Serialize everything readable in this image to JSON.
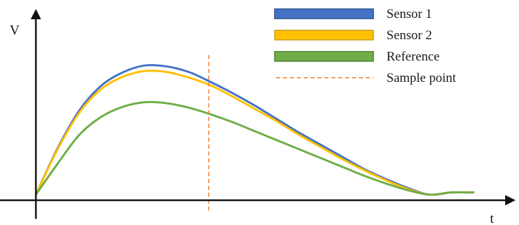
{
  "chart_data": {
    "type": "line",
    "title": "",
    "xlabel": "t",
    "ylabel": "V",
    "axis_ticks": "none",
    "grid": false,
    "legend_position": "top-right",
    "x_range": [
      0,
      10
    ],
    "y_range": [
      -0.05,
      1.5
    ],
    "x": [
      0,
      0.5,
      1,
      1.5,
      2,
      2.5,
      3,
      3.5,
      4,
      4.5,
      5,
      5.5,
      6,
      6.5,
      7,
      7.5,
      8,
      8.5,
      9,
      9.5,
      10
    ],
    "series": [
      {
        "name": "Sensor 1",
        "color": "#4472C4",
        "values": [
          0,
          0.42,
          0.76,
          0.98,
          1.1,
          1.16,
          1.15,
          1.1,
          1.01,
          0.91,
          0.8,
          0.68,
          0.56,
          0.45,
          0.34,
          0.23,
          0.14,
          0.06,
          0,
          0.02,
          0.02
        ]
      },
      {
        "name": "Sensor 2",
        "color": "#FFC000",
        "values": [
          0,
          0.41,
          0.74,
          0.95,
          1.06,
          1.11,
          1.1,
          1.05,
          0.98,
          0.88,
          0.77,
          0.66,
          0.54,
          0.43,
          0.32,
          0.22,
          0.13,
          0.05,
          0,
          0.02,
          0.02
        ]
      },
      {
        "name": "Reference",
        "color": "#70AD47",
        "values": [
          0,
          0.28,
          0.54,
          0.7,
          0.79,
          0.83,
          0.82,
          0.78,
          0.72,
          0.65,
          0.57,
          0.49,
          0.41,
          0.33,
          0.25,
          0.17,
          0.1,
          0.04,
          0,
          0.02,
          0.02
        ]
      }
    ],
    "annotations": [
      {
        "name": "Sample point",
        "type": "vertical-line",
        "style": "dashed",
        "color": "#ED7D31",
        "x": 3.95
      }
    ]
  }
}
